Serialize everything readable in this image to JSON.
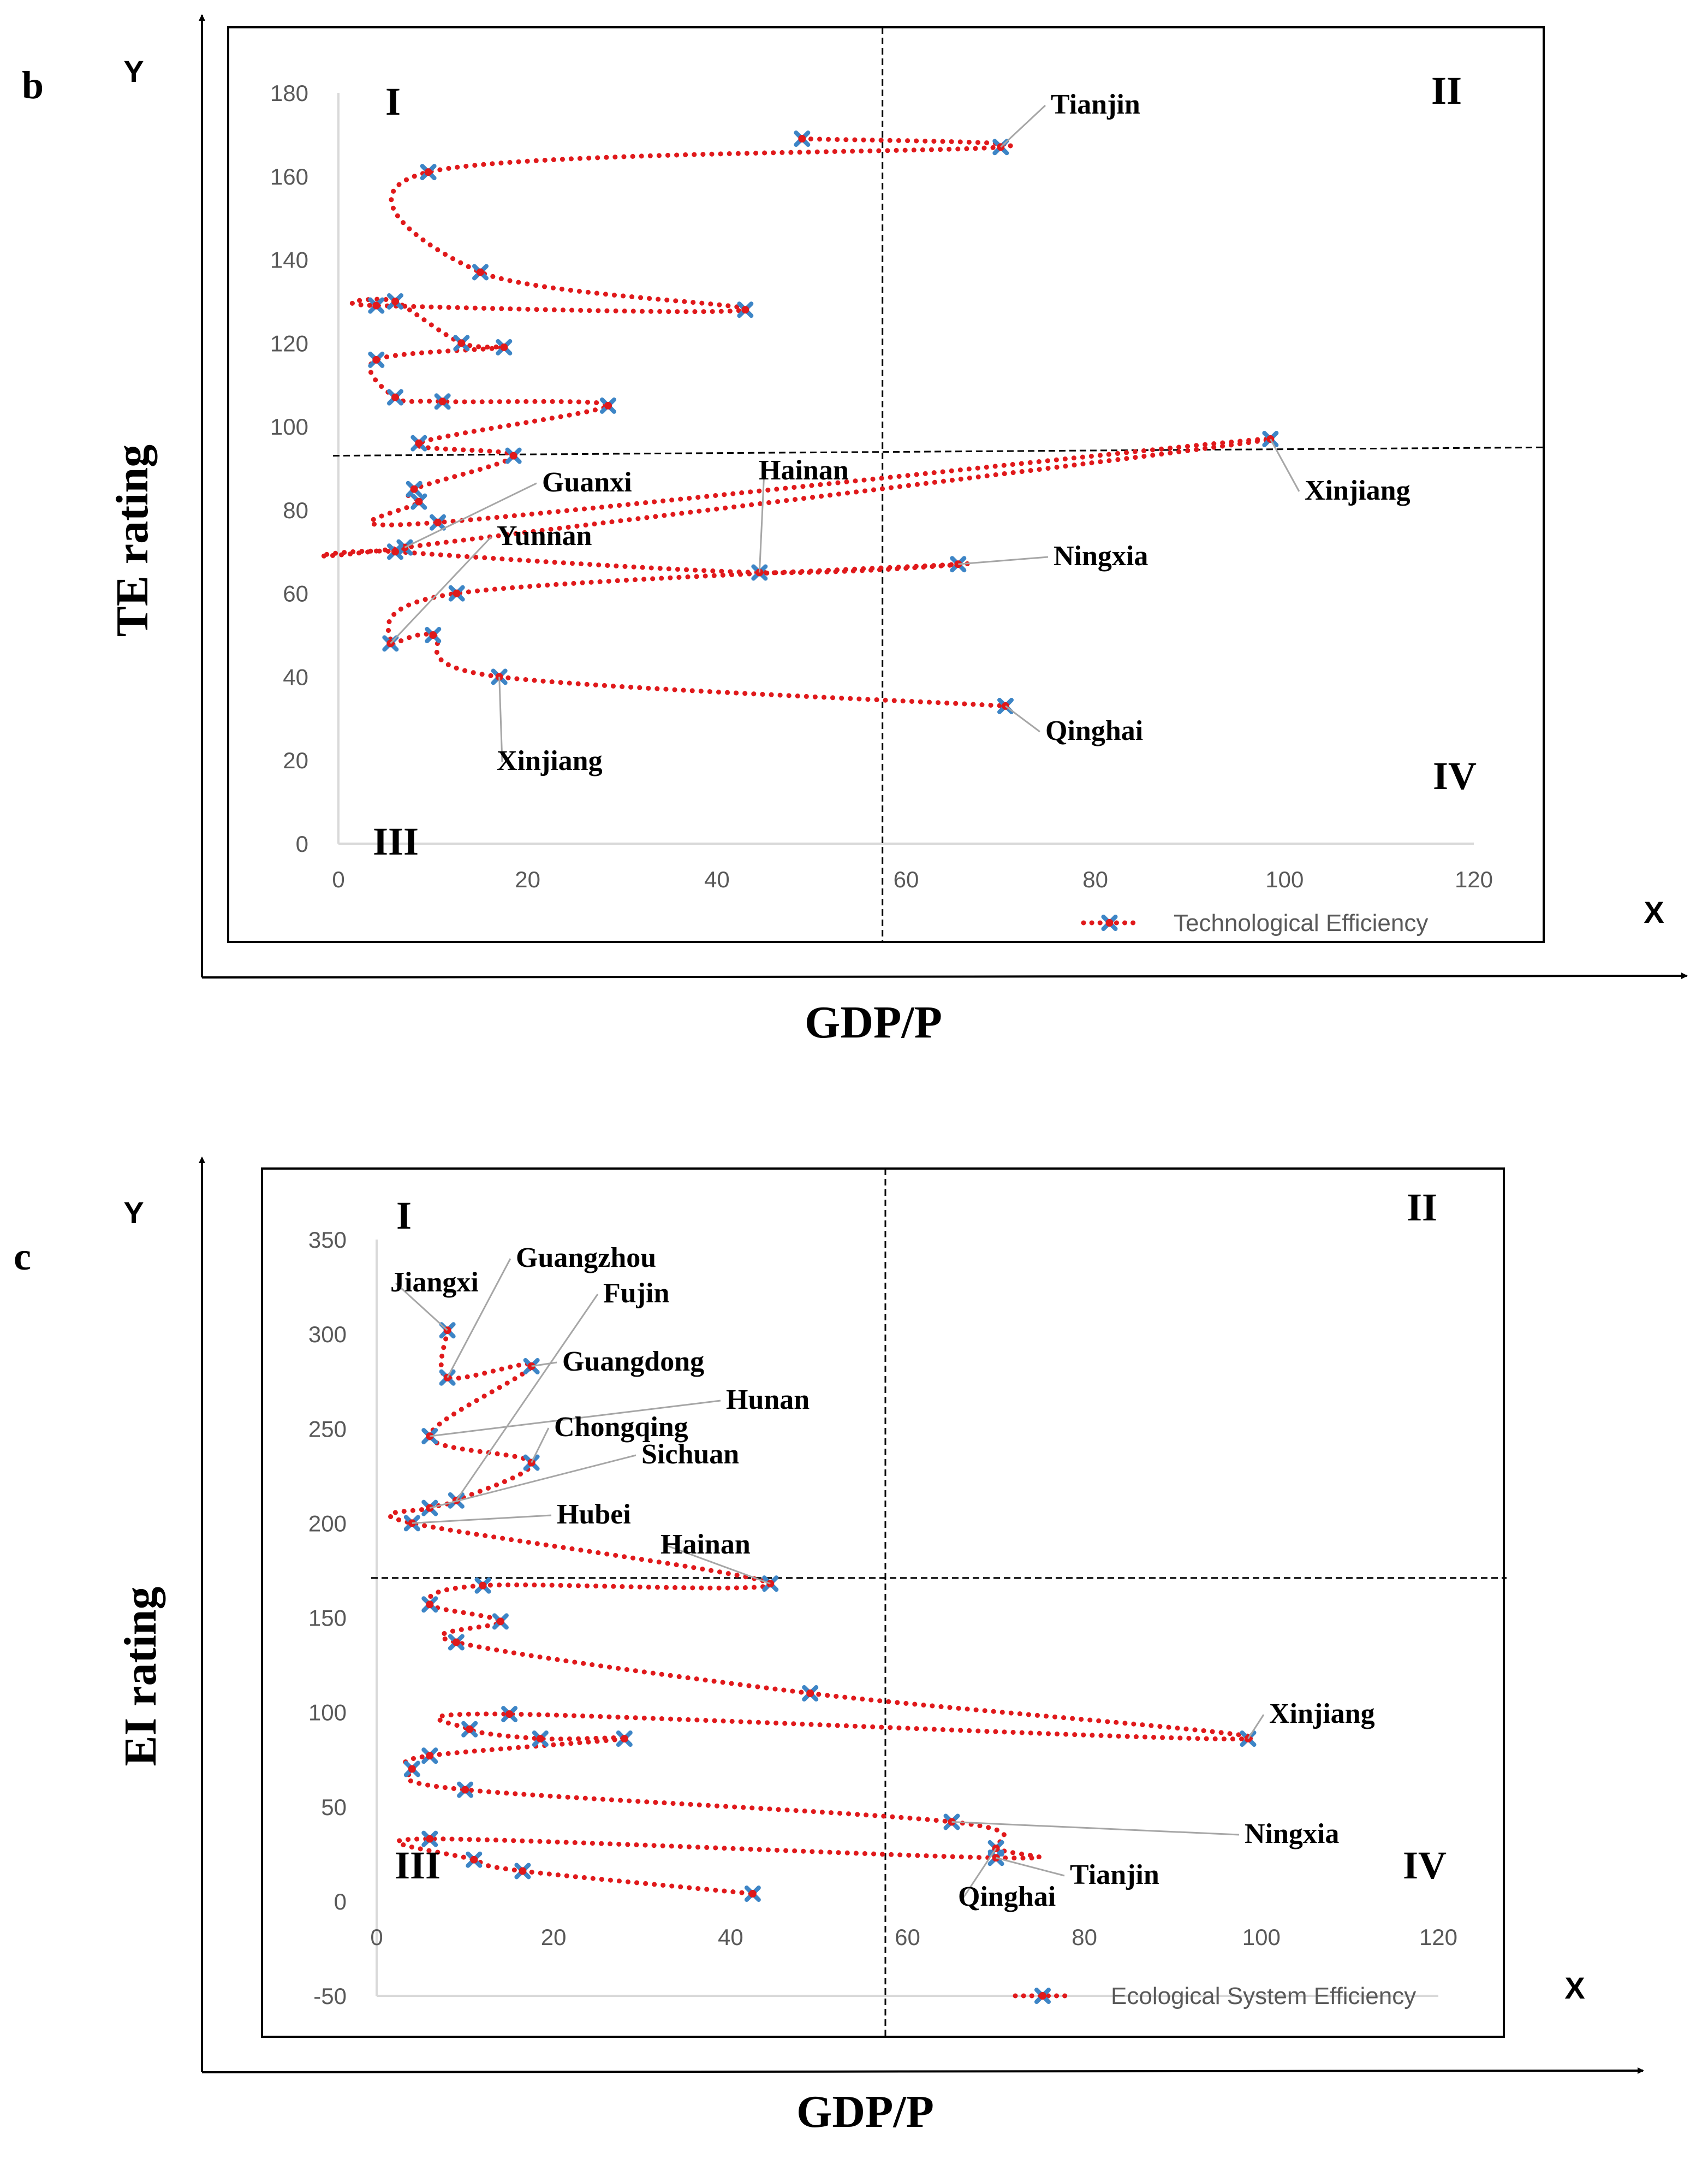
{
  "chart_data": [
    {
      "panel": "b",
      "type": "scatter",
      "title": "",
      "xlabel": "GDP/P",
      "ylabel": "TE rating",
      "x_axis_letter": "X",
      "y_axis_letter": "Y",
      "xlim": [
        0,
        120
      ],
      "ylim": [
        0,
        180
      ],
      "xticks": [
        0,
        20,
        40,
        60,
        80,
        100,
        120
      ],
      "yticks": [
        0,
        20,
        40,
        60,
        80,
        100,
        120,
        140,
        160,
        180
      ],
      "threshold_x": 57.5,
      "threshold_y": [
        93,
        95
      ],
      "quadrants": [
        "I",
        "II",
        "III",
        "IV"
      ],
      "legend": "Technological Efficiency",
      "colors": {
        "line": "#e0191b",
        "marker": "#3d85c6"
      },
      "series": [
        {
          "name": "Technological Efficiency",
          "points": [
            [
              49,
              169
            ],
            [
              70,
              167
            ],
            [
              9.5,
              161
            ],
            [
              15,
              137
            ],
            [
              43,
              128
            ],
            [
              4,
              129
            ],
            [
              6,
              130
            ],
            [
              13,
              120
            ],
            [
              17.5,
              119
            ],
            [
              4,
              116
            ],
            [
              6,
              107
            ],
            [
              11,
              106
            ],
            [
              28.5,
              105
            ],
            [
              8.5,
              96
            ],
            [
              18.5,
              93
            ],
            [
              8,
              85
            ],
            [
              8.5,
              82
            ],
            [
              10.5,
              77
            ],
            [
              98.5,
              97
            ],
            [
              7,
              71
            ],
            [
              6,
              70
            ],
            [
              44.5,
              65
            ],
            [
              65.5,
              67
            ],
            [
              12.5,
              60
            ],
            [
              5.5,
              48
            ],
            [
              10,
              50
            ],
            [
              17,
              40
            ],
            [
              70.5,
              33
            ]
          ]
        }
      ],
      "annotations": [
        {
          "text": "Tianjin",
          "x": 70,
          "y": 167
        },
        {
          "text": "Xinjiang",
          "x": 98.5,
          "y": 97
        },
        {
          "text": "Guanxi",
          "x": 7,
          "y": 71
        },
        {
          "text": "Hainan",
          "x": 44.5,
          "y": 65
        },
        {
          "text": "Yunnan",
          "x": 5.5,
          "y": 48
        },
        {
          "text": "Ningxia",
          "x": 65.5,
          "y": 67
        },
        {
          "text": "Xinjiang",
          "x": 17,
          "y": 40
        },
        {
          "text": "Qinghai",
          "x": 70.5,
          "y": 33
        }
      ]
    },
    {
      "panel": "c",
      "type": "scatter",
      "title": "",
      "xlabel": "GDP/P",
      "ylabel": "EI rating",
      "x_axis_letter": "X",
      "y_axis_letter": "Y",
      "xlim": [
        0,
        120
      ],
      "ylim": [
        -50,
        350
      ],
      "xticks": [
        0,
        20,
        40,
        60,
        80,
        100,
        120
      ],
      "yticks": [
        -50,
        0,
        50,
        100,
        150,
        200,
        250,
        300,
        350
      ],
      "threshold_x": 57.5,
      "threshold_y": [
        171,
        171
      ],
      "quadrants": [
        "I",
        "II",
        "III",
        "IV"
      ],
      "legend": "Ecological System Efficiency",
      "colors": {
        "line": "#e0191b",
        "marker": "#3d85c6"
      },
      "series": [
        {
          "name": "Ecological System Efficiency",
          "points": [
            [
              8,
              302
            ],
            [
              8,
              277
            ],
            [
              17.5,
              283
            ],
            [
              6,
              246
            ],
            [
              17.5,
              232
            ],
            [
              9,
              212
            ],
            [
              6,
              208
            ],
            [
              4,
              200
            ],
            [
              44.5,
              168
            ],
            [
              12,
              167
            ],
            [
              6,
              157
            ],
            [
              14,
              148
            ],
            [
              9,
              137
            ],
            [
              49,
              110
            ],
            [
              98.5,
              86
            ],
            [
              15,
              99
            ],
            [
              10.5,
              91
            ],
            [
              18.5,
              86
            ],
            [
              28,
              86
            ],
            [
              6,
              77
            ],
            [
              4,
              70
            ],
            [
              10,
              59
            ],
            [
              65,
              42
            ],
            [
              70,
              28
            ],
            [
              70,
              23
            ],
            [
              6,
              33
            ],
            [
              11,
              22
            ],
            [
              16.5,
              16
            ],
            [
              42.5,
              4
            ]
          ]
        }
      ],
      "annotations": [
        {
          "text": "Guangzhou",
          "x": 8,
          "y": 277
        },
        {
          "text": "Jiangxi",
          "x": 8,
          "y": 302
        },
        {
          "text": "Fujin",
          "x": 9,
          "y": 212
        },
        {
          "text": "Guangdong",
          "x": 17.5,
          "y": 283
        },
        {
          "text": "Hunan",
          "x": 6,
          "y": 246
        },
        {
          "text": "Chongqing",
          "x": 17.5,
          "y": 232
        },
        {
          "text": "Sichuan",
          "x": 6,
          "y": 208
        },
        {
          "text": "Hubei",
          "x": 4,
          "y": 200
        },
        {
          "text": "Hainan",
          "x": 44.5,
          "y": 168
        },
        {
          "text": "Xinjiang",
          "x": 98.5,
          "y": 86
        },
        {
          "text": "Ningxia",
          "x": 65,
          "y": 42
        },
        {
          "text": "Tianjin",
          "x": 70,
          "y": 23
        },
        {
          "text": "Qinghai",
          "x": 70,
          "y": 28
        }
      ]
    }
  ]
}
